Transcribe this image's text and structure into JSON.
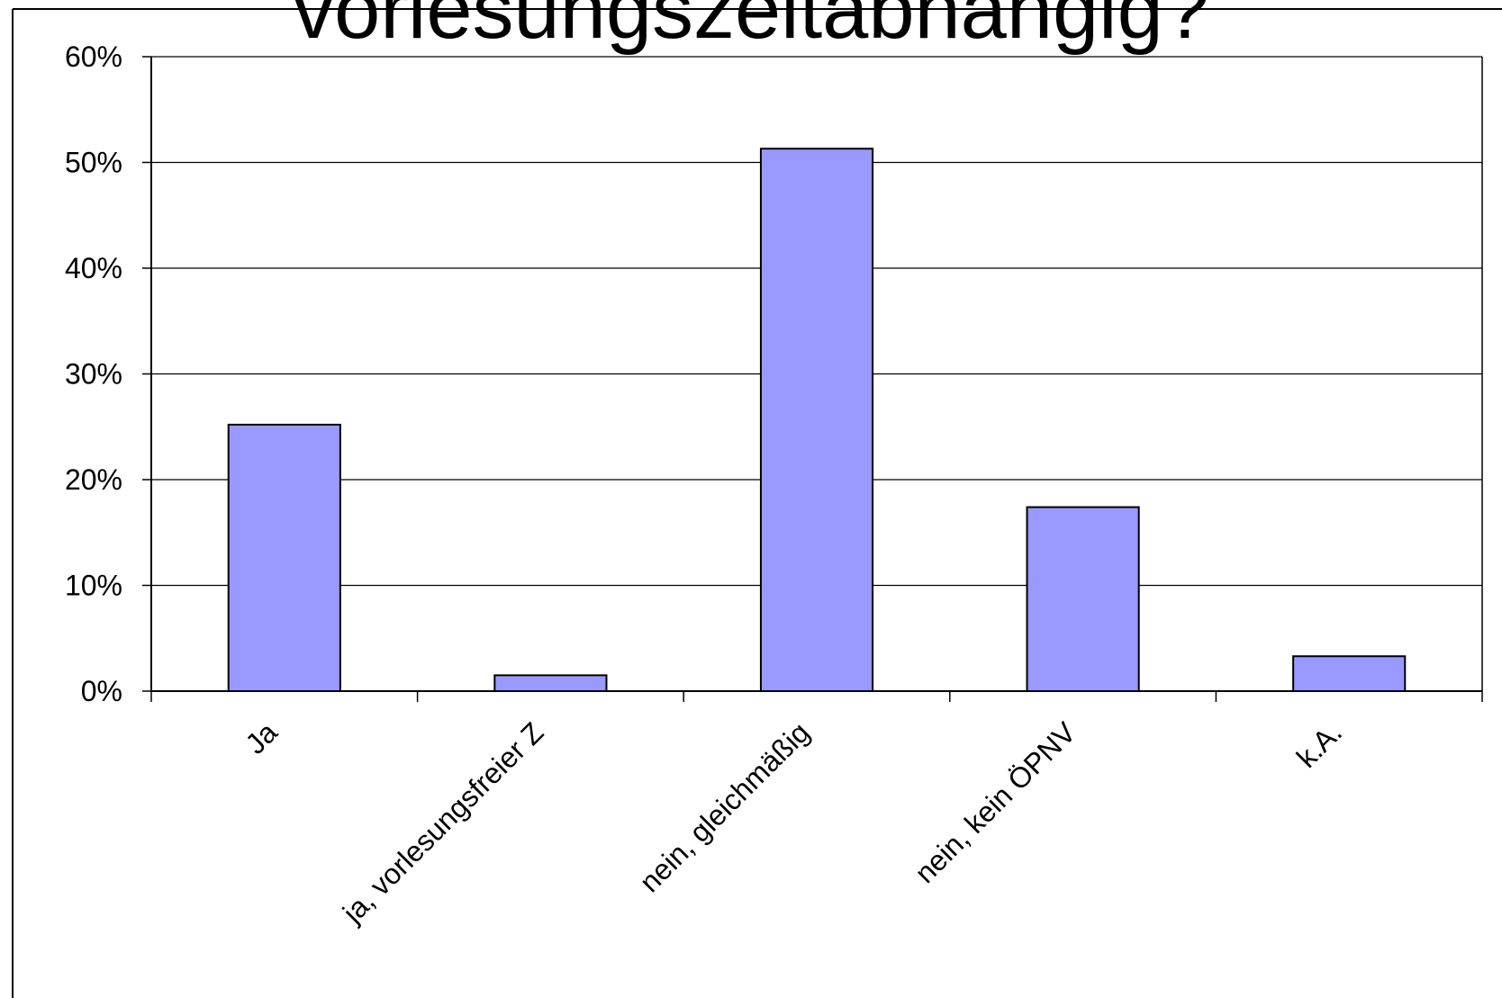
{
  "chart_data": {
    "type": "bar",
    "title": "vorlesungszeitabhängig?",
    "categories": [
      "Ja",
      "ja, vorlesungsfreier Z",
      "nein, gleichmäßig",
      "nein, kein ÖPNV",
      "k.A."
    ],
    "values": [
      25.2,
      1.5,
      51.3,
      17.4,
      3.3
    ],
    "value_unit": "%",
    "ylim": [
      0,
      60
    ],
    "yticks": [
      0,
      10,
      20,
      30,
      40,
      50,
      60
    ],
    "ytick_labels": [
      "0%",
      "10%",
      "20%",
      "30%",
      "40%",
      "50%",
      "60%"
    ],
    "xlabel": "",
    "ylabel": "",
    "grid": true,
    "legend": "none",
    "colors": {
      "bar_fill": "#9999ff",
      "bar_stroke": "#000000",
      "grid": "#000000",
      "background": "#ffffff"
    }
  }
}
